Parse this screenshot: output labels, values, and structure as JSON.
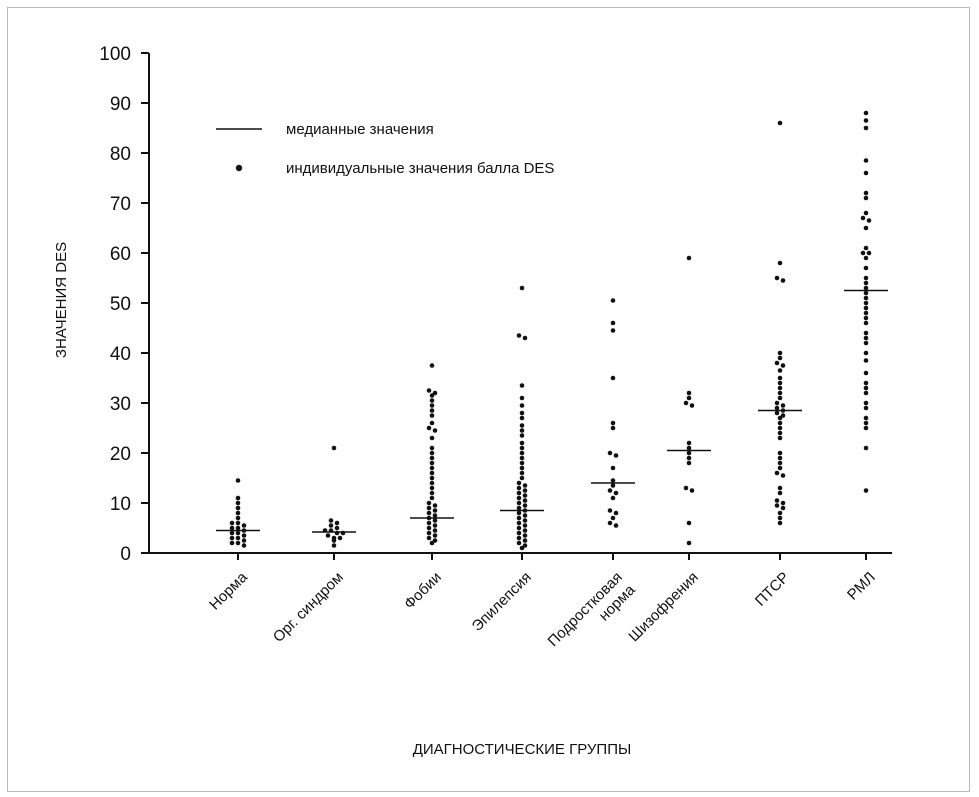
{
  "chart_data": {
    "type": "scatter",
    "ylabel": "ЗНАЧЕНИЯ DES",
    "xlabel": "ДИАГНОСТИЧЕСКИЕ ГРУППЫ",
    "ylim": [
      0,
      100
    ],
    "yticks": [
      0,
      10,
      20,
      30,
      40,
      50,
      60,
      70,
      80,
      90,
      100
    ],
    "grid": false,
    "legend": {
      "placement": "top-left",
      "median_label": "медианные значения",
      "points_label": "индивидуальные значения балла DES"
    },
    "categories": [
      {
        "label": [
          "Норма"
        ],
        "median": 4.5,
        "values": [
          14.5,
          11,
          10,
          9,
          8,
          7,
          6,
          6,
          5.5,
          5,
          5,
          4.5,
          4,
          4,
          3.5,
          3,
          3,
          2.5,
          2,
          2,
          1.5
        ]
      },
      {
        "label": [
          "Орг. синдром"
        ],
        "median": 4.2,
        "values": [
          21,
          6.5,
          6,
          5.5,
          5,
          4.5,
          4.5,
          4,
          4,
          3.5,
          3,
          3,
          2.5,
          1.5
        ]
      },
      {
        "label": [
          "Фобии"
        ],
        "median": 7,
        "values": [
          37.5,
          32.5,
          32,
          31.5,
          30.5,
          29.5,
          28.5,
          27.5,
          26,
          25,
          24.5,
          23,
          21,
          20,
          19,
          18,
          17,
          16,
          15,
          14,
          13,
          12,
          11,
          10,
          9.5,
          9,
          8.5,
          8,
          7.5,
          7,
          6.5,
          6,
          5.5,
          5,
          4.5,
          4,
          3.5,
          3,
          2.5,
          2
        ]
      },
      {
        "label": [
          "Эпилепсия"
        ],
        "median": 8.5,
        "values": [
          53,
          43.5,
          43,
          33.5,
          31,
          29.5,
          28,
          27,
          25.5,
          24.5,
          23.5,
          22,
          21,
          20,
          19,
          18,
          17,
          16,
          15,
          14,
          13.5,
          13,
          12.5,
          12,
          11.5,
          11,
          10.5,
          10,
          9.5,
          9,
          8.5,
          8,
          7.5,
          7,
          6.5,
          6,
          5.5,
          5,
          4.5,
          4,
          3.5,
          3,
          2.5,
          2,
          1.5,
          1
        ]
      },
      {
        "label": [
          "Подростковая",
          "норма"
        ],
        "median": 14,
        "values": [
          50.5,
          46,
          44.5,
          35,
          26,
          25,
          20,
          19.5,
          17,
          14.5,
          13.5,
          12.5,
          12,
          11,
          8.5,
          8,
          7,
          6,
          5.5
        ]
      },
      {
        "label": [
          "Шизофрения"
        ],
        "median": 20.5,
        "values": [
          59,
          32,
          31,
          30,
          29.5,
          22,
          21,
          20,
          19,
          18,
          13,
          12.5,
          6,
          2
        ]
      },
      {
        "label": [
          "ПТСР"
        ],
        "median": 28.5,
        "values": [
          86,
          58,
          55,
          54.5,
          40,
          39,
          38,
          37.5,
          36.5,
          35,
          34,
          33,
          32,
          31,
          30,
          29.5,
          29,
          28.5,
          28,
          27.5,
          27,
          26,
          25,
          24,
          23,
          20,
          19,
          18,
          17,
          16,
          15.5,
          13,
          12,
          10.5,
          10,
          9.5,
          9,
          8,
          7,
          6
        ]
      },
      {
        "label": [
          "РМЛ"
        ],
        "median": 52.5,
        "values": [
          88,
          86.5,
          85,
          78.5,
          76,
          72,
          71,
          68,
          67,
          66.5,
          65,
          61,
          60,
          60,
          59,
          57,
          55,
          54,
          53,
          52,
          51,
          50,
          49,
          48,
          47,
          46,
          44,
          43,
          42,
          40,
          38.5,
          36,
          34,
          33,
          32,
          30,
          29,
          27,
          26,
          25,
          21,
          12.5
        ]
      }
    ]
  }
}
